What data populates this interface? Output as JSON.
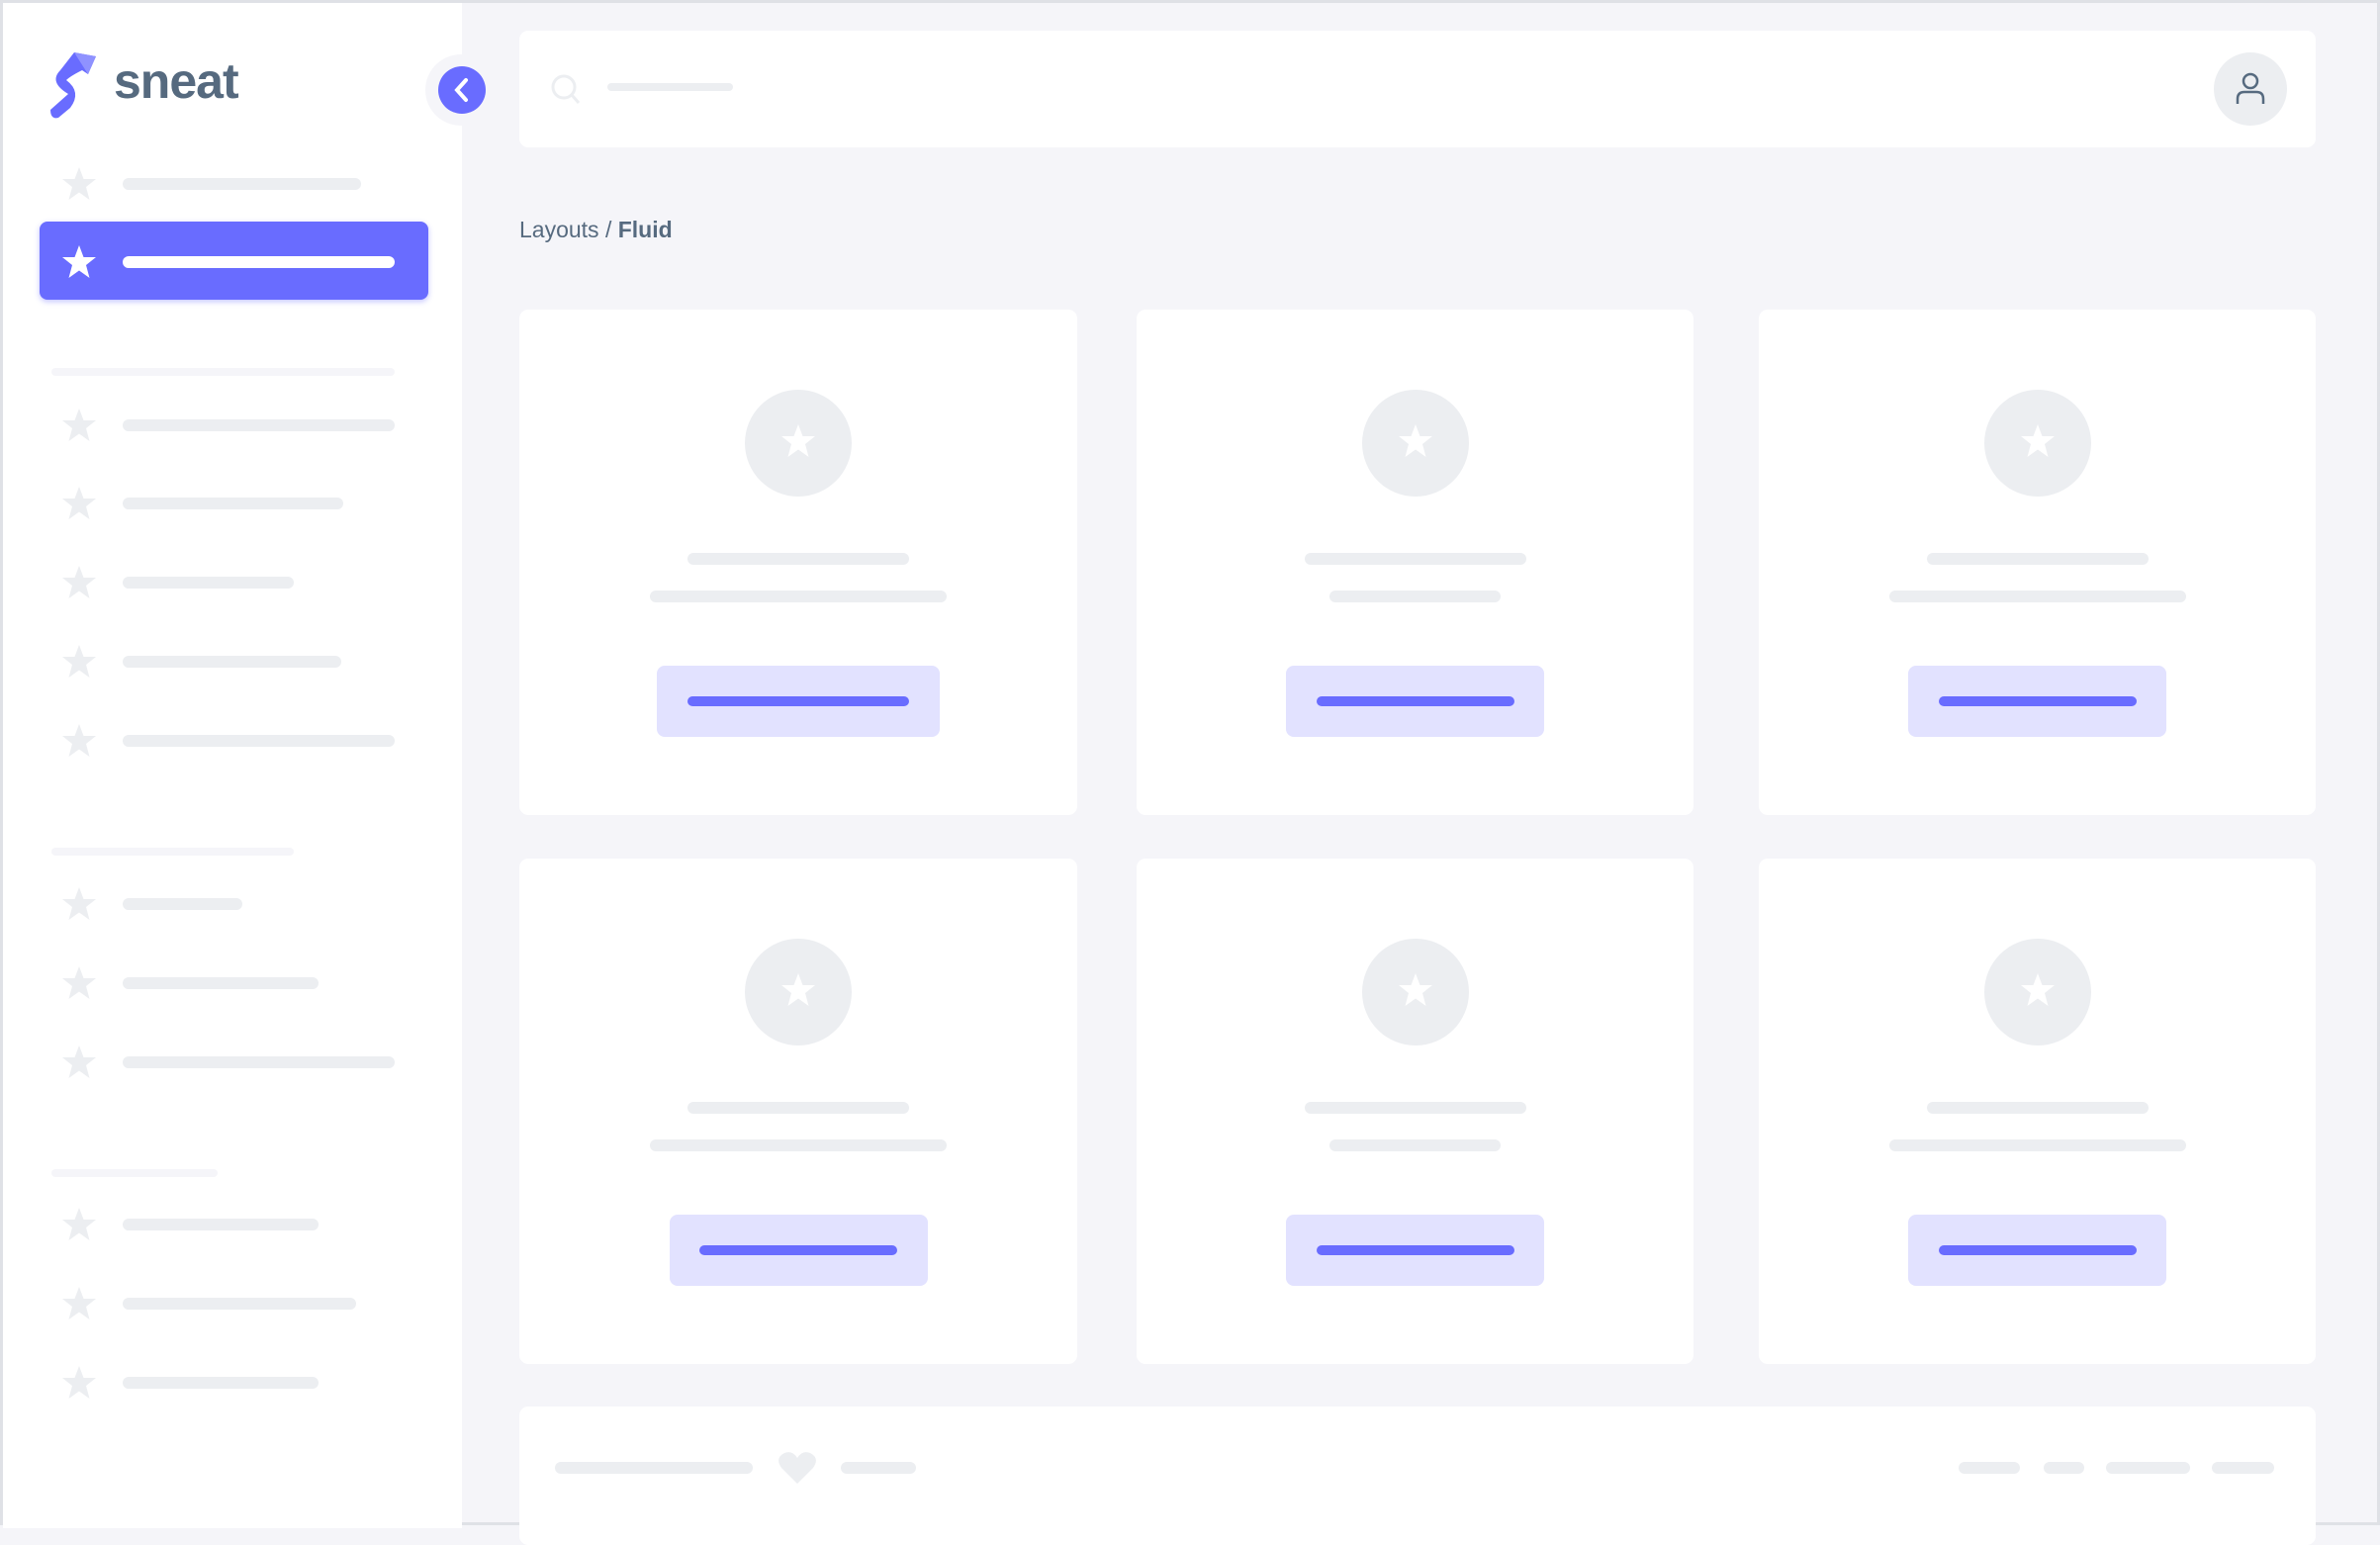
{
  "app": {
    "logo_text": "sneat",
    "brand_color": "#696cff"
  },
  "breadcrumb": {
    "parent": "Layouts",
    "separator": "/",
    "current": "Fluid"
  },
  "icons": {
    "logo": "sneat-logo",
    "collapse": "chevron-left-icon",
    "search": "search-icon",
    "avatar": "user-icon",
    "nav": "star-icon",
    "footer": "heart-icon"
  }
}
